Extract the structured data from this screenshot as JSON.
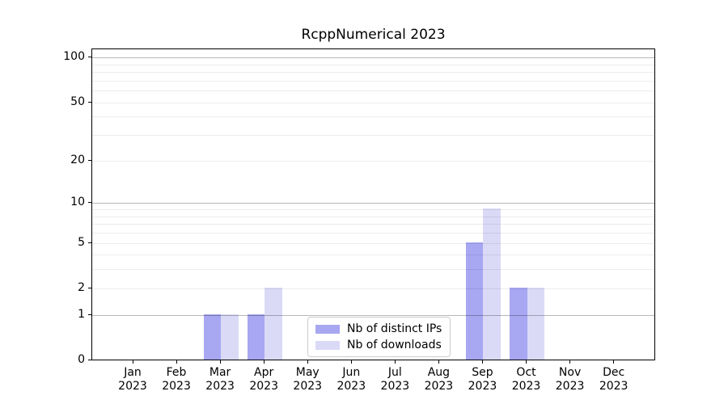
{
  "chart_data": {
    "type": "bar",
    "title": "RcppNumerical 2023",
    "categories": [
      "Jan 2023",
      "Feb 2023",
      "Mar 2023",
      "Apr 2023",
      "May 2023",
      "Jun 2023",
      "Jul 2023",
      "Aug 2023",
      "Sep 2023",
      "Oct 2023",
      "Nov 2023",
      "Dec 2023"
    ],
    "series": [
      {
        "name": "Nb of distinct IPs",
        "color": "#a7a7f2",
        "values": [
          0,
          0,
          1,
          1,
          0,
          0,
          0,
          0,
          5,
          2,
          0,
          0
        ]
      },
      {
        "name": "Nb of downloads",
        "color": "#dadaf7",
        "values": [
          0,
          0,
          1,
          2,
          0,
          0,
          0,
          0,
          9,
          2,
          0,
          0
        ]
      }
    ],
    "xlabel": "",
    "ylabel": "",
    "yscale": "log1p",
    "ylim": [
      0,
      115
    ],
    "yticks": [
      0,
      1,
      2,
      5,
      10,
      20,
      50,
      100
    ],
    "major_gridlines": [
      1,
      10,
      100
    ],
    "minor_gridlines": [
      2,
      3,
      4,
      5,
      6,
      7,
      8,
      9,
      20,
      30,
      40,
      50,
      60,
      70,
      80,
      90
    ],
    "grid": "horizontal",
    "legend_position": "lower center"
  },
  "colors": {
    "axis": "#000000",
    "text": "#000000",
    "grid_major": "#b8b8b8",
    "grid_minor": "#e9e9e9",
    "legend_border": "#cccccc",
    "background": "#ffffff"
  }
}
